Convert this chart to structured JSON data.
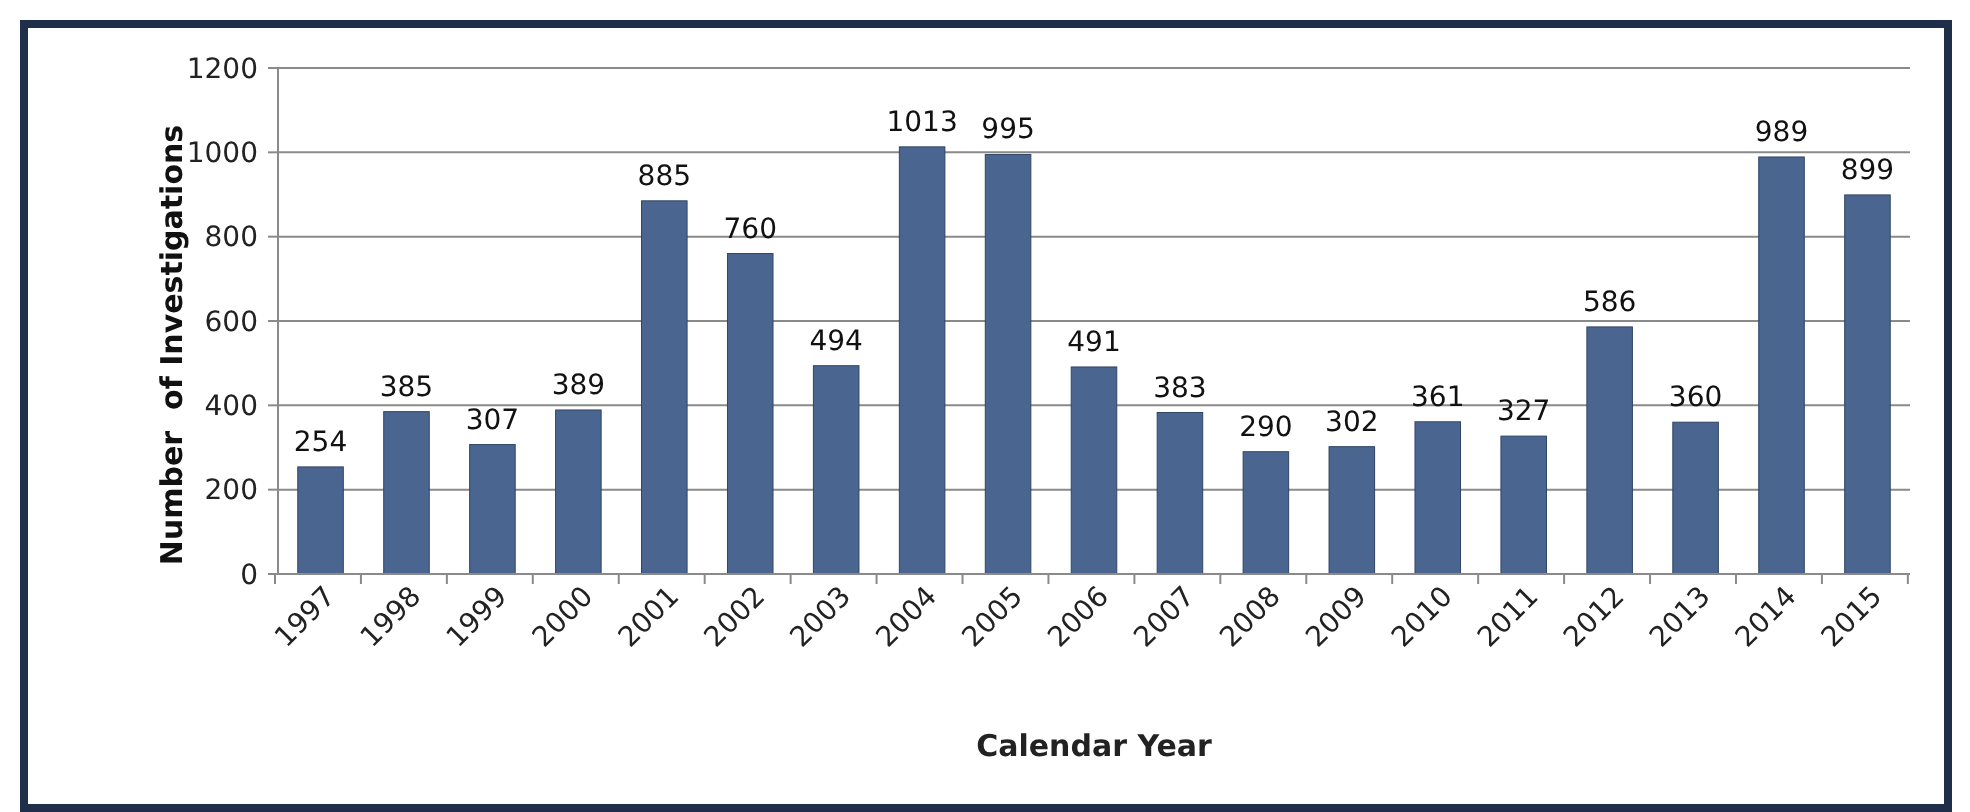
{
  "chart_data": {
    "type": "bar",
    "xlabel": "Calendar Year",
    "ylabel": "Number  of Investigations",
    "categories": [
      "1997",
      "1998",
      "1999",
      "2000",
      "2001",
      "2002",
      "2003",
      "2004",
      "2005",
      "2006",
      "2007",
      "2008",
      "2009",
      "2010",
      "2011",
      "2012",
      "2013",
      "2014",
      "2015"
    ],
    "values": [
      254,
      385,
      307,
      389,
      885,
      760,
      494,
      1013,
      995,
      491,
      383,
      290,
      302,
      361,
      327,
      586,
      360,
      989,
      899
    ],
    "color": "#4a6690",
    "ylim": [
      0,
      1200
    ],
    "yticks": [
      0,
      200,
      400,
      600,
      800,
      1000,
      1200
    ],
    "grid": "y",
    "data_labels": true
  }
}
